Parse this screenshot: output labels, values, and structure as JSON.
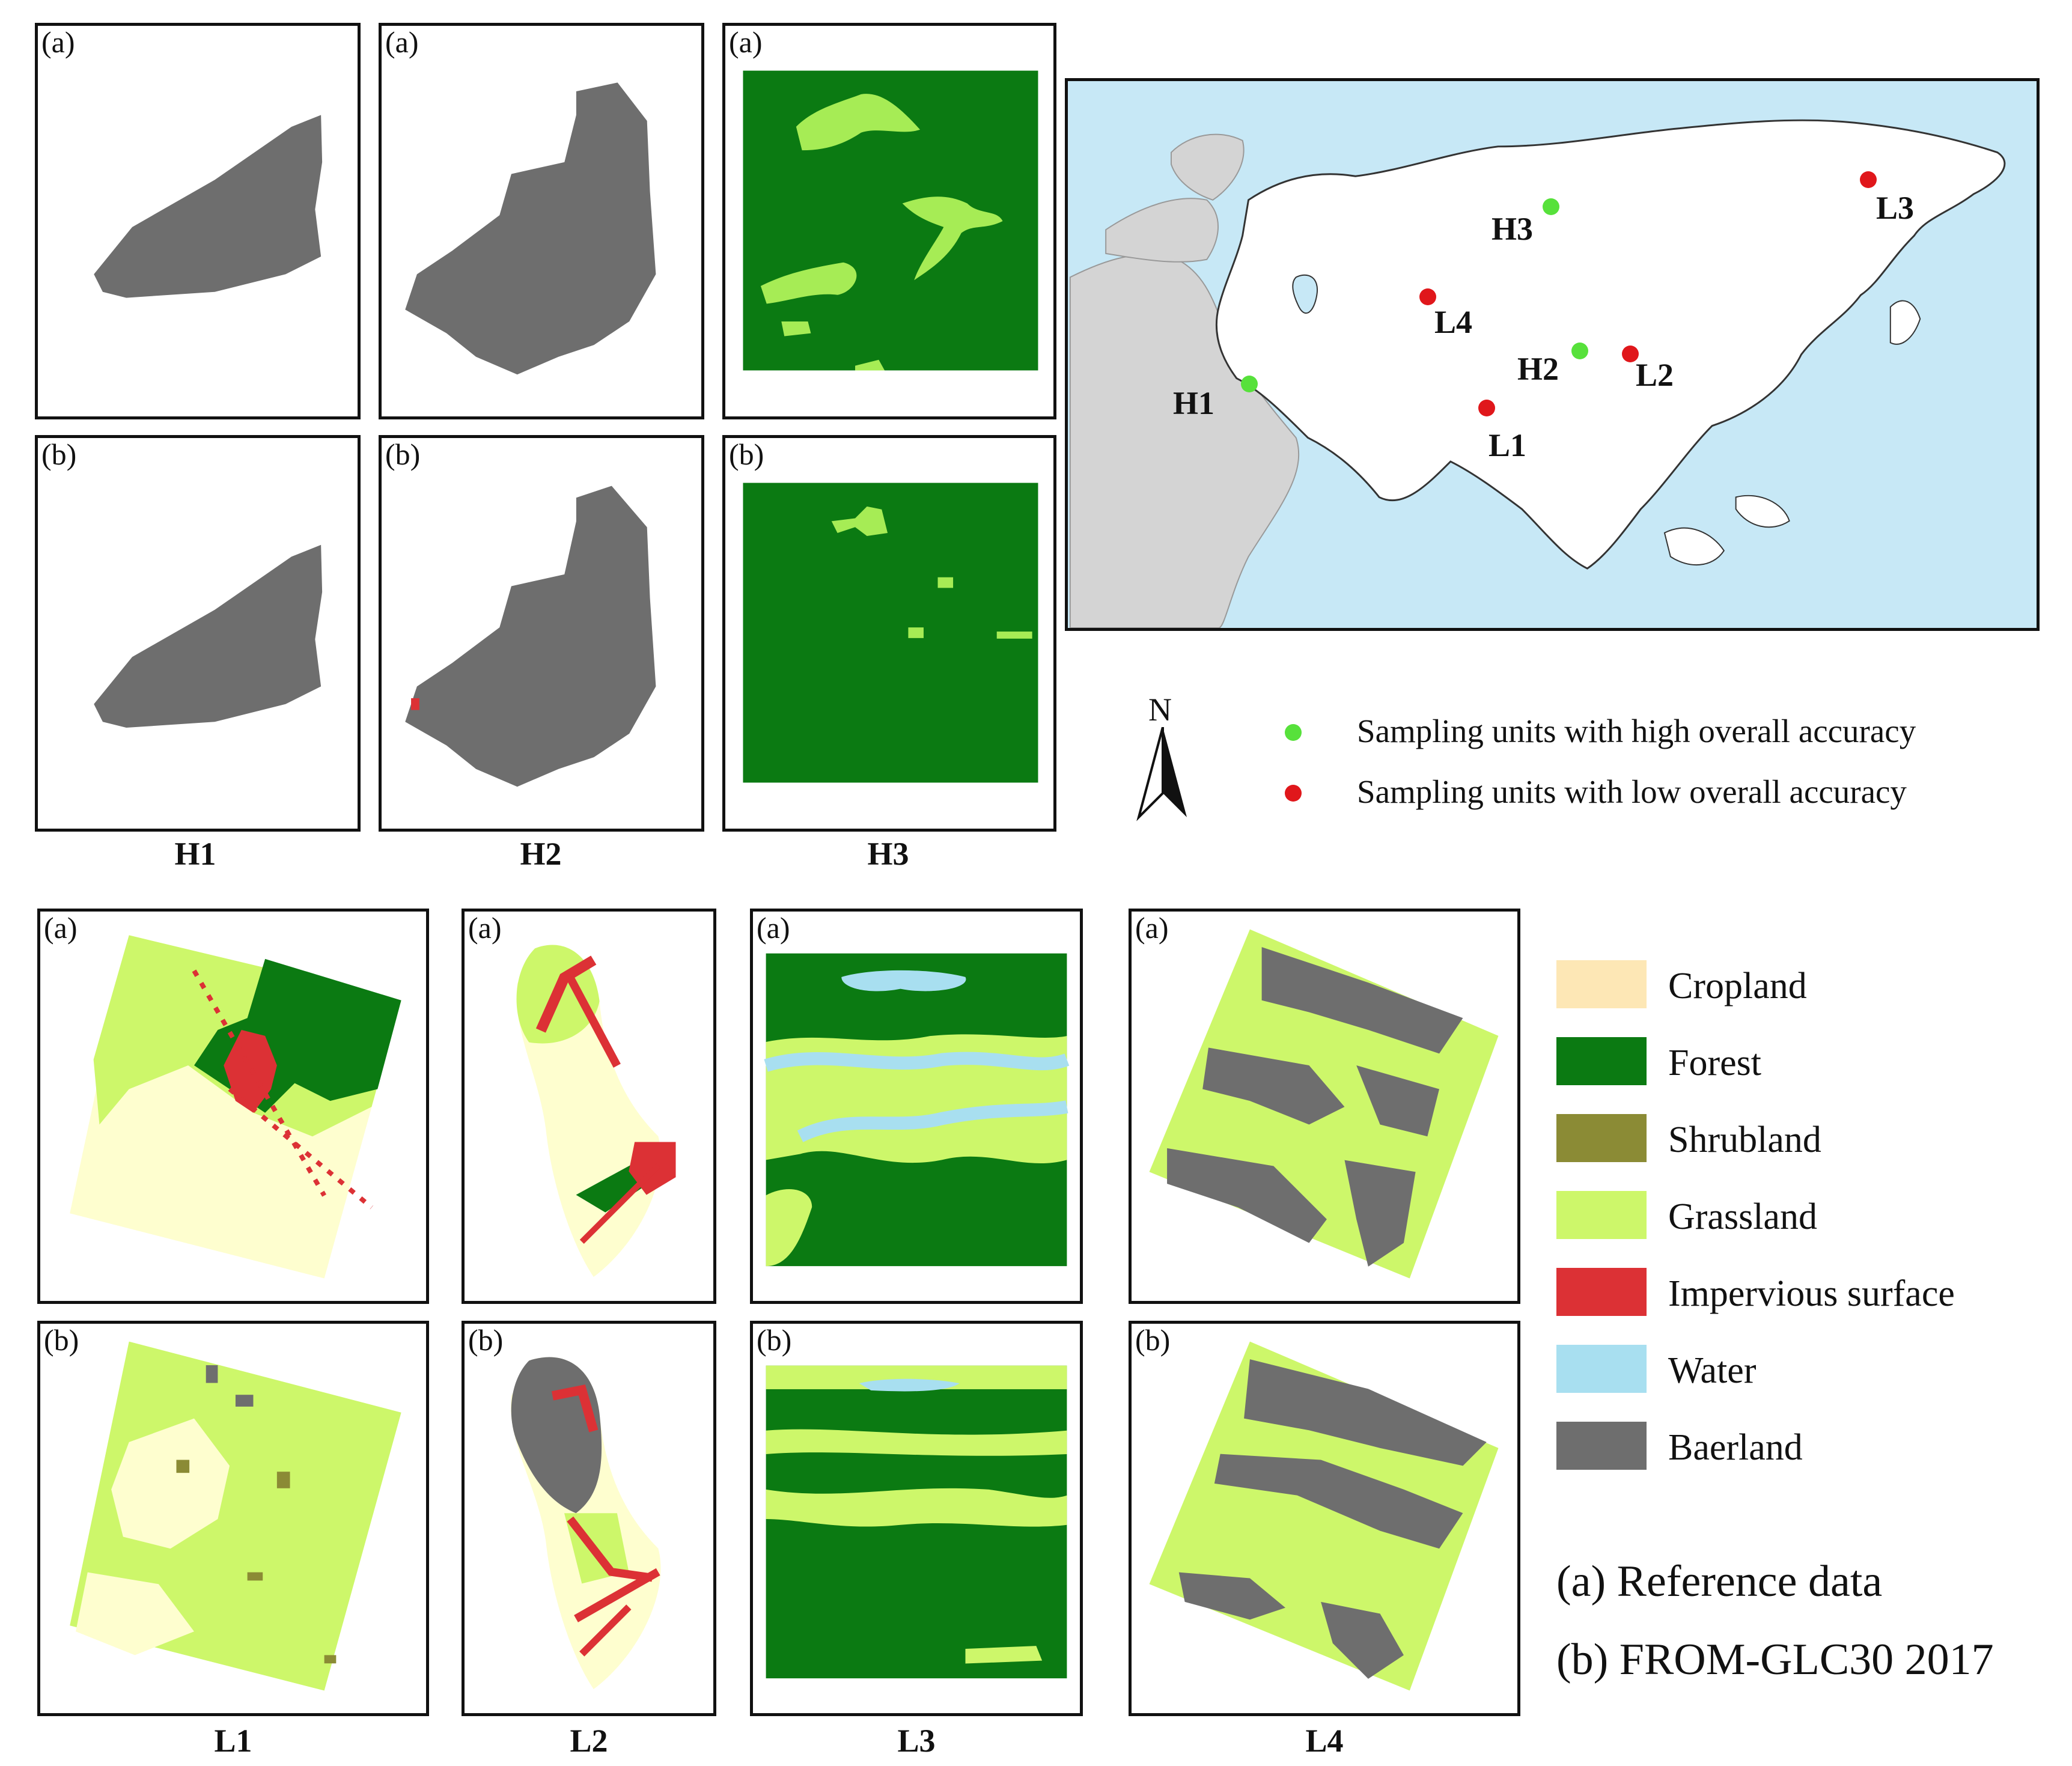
{
  "panel_labels": {
    "a": "(a)",
    "b": "(b)"
  },
  "captions": [
    "H1",
    "H2",
    "H3",
    "L1",
    "L2",
    "L3",
    "L4"
  ],
  "legend": [
    {
      "label": "Cropland",
      "color": "#fde7b5"
    },
    {
      "label": "Forest",
      "color": "#0b7a12"
    },
    {
      "label": "Shrubland",
      "color": "#8b8b35"
    },
    {
      "label": "Grassland",
      "color": "#cdf76a"
    },
    {
      "label": "Impervious surface",
      "color": "#dc3135"
    },
    {
      "label": "Water",
      "color": "#a8dff0"
    },
    {
      "label": "Baerland",
      "color": "#6e6e6e"
    }
  ],
  "points_legend": {
    "high": {
      "label": "Sampling units with high overall accuracy",
      "color": "#57e13b"
    },
    "low": {
      "label": "Sampling units with low overall accuracy",
      "color": "#e0171b"
    }
  },
  "north": "N",
  "notes": {
    "a": "(a) Reference data",
    "b": "(b) FROM-GLC30 2017"
  },
  "map_points": [
    {
      "name": "H3",
      "type": "high"
    },
    {
      "name": "L3",
      "type": "low"
    },
    {
      "name": "L4",
      "type": "low"
    },
    {
      "name": "H2",
      "type": "high"
    },
    {
      "name": "L2",
      "type": "low"
    },
    {
      "name": "H1",
      "type": "high"
    },
    {
      "name": "L1",
      "type": "low"
    }
  ]
}
